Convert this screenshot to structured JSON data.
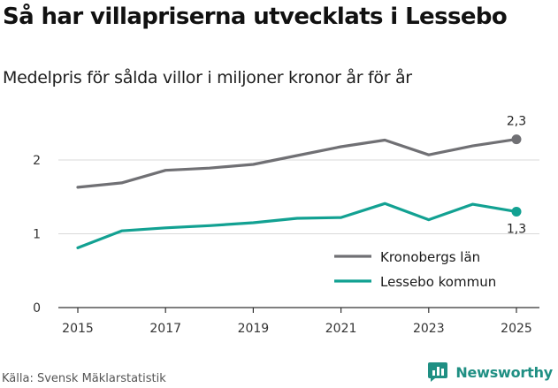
{
  "header": {
    "title": "Så har villapriserna utvecklats i Lessebo",
    "subtitle": "Medelpris för sålda villor i miljoner kronor år för år"
  },
  "footer": {
    "source": "Källa: Svensk Mäklarstatistik",
    "brand": "Newsworthy",
    "brand_icon": "newsworthy-logo-icon"
  },
  "colors": {
    "kronoberg": "#707074",
    "lessebo": "#12a192",
    "grid": "#d9d9d9",
    "axis": "#333333",
    "brand": "#1f8f83"
  },
  "chart_data": {
    "type": "line",
    "title": "Så har villapriserna utvecklats i Lessebo",
    "subtitle": "Medelpris för sålda villor i miljoner kronor år för år",
    "xlabel": "",
    "ylabel": "",
    "x": [
      2015,
      2016,
      2017,
      2018,
      2019,
      2020,
      2021,
      2022,
      2023,
      2024,
      2025
    ],
    "xticks": [
      "2015",
      "2017",
      "2019",
      "2021",
      "2023",
      "2025"
    ],
    "xlim": [
      2015,
      2025
    ],
    "yticks": [
      "0",
      "1",
      "2"
    ],
    "ylim": [
      0,
      2.4
    ],
    "grid": true,
    "legend_position": "bottom-right",
    "series": [
      {
        "name": "Kronobergs län",
        "color": "#707074",
        "values": [
          1.63,
          1.69,
          1.86,
          1.89,
          1.94,
          2.06,
          2.18,
          2.27,
          2.07,
          2.19,
          2.28
        ],
        "end_label": "2,3"
      },
      {
        "name": "Lessebo kommun",
        "color": "#12a192",
        "values": [
          0.81,
          1.04,
          1.08,
          1.11,
          1.15,
          1.21,
          1.22,
          1.41,
          1.19,
          1.4,
          1.3
        ],
        "end_label": "1,3"
      }
    ]
  }
}
